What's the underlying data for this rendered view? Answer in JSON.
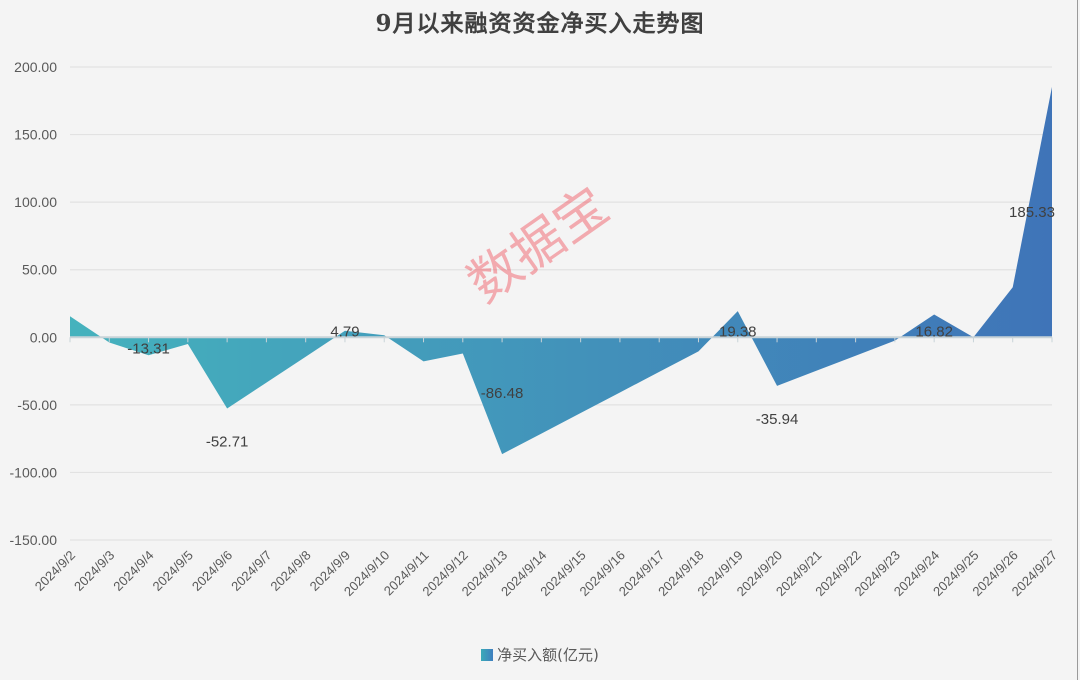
{
  "title": "9月以来融资资金净买入走势图",
  "watermark": "数据宝",
  "legend": {
    "label": "净买入额(亿元)"
  },
  "colors": {
    "start": "#45b2bd",
    "end": "#3f74b8",
    "grid": "#e2e2e2",
    "axis": "#c8d3d8"
  },
  "chart_data": {
    "type": "area",
    "title": "9月以来融资资金净买入走势图",
    "xlabel": "",
    "ylabel": "",
    "ylim": [
      -150,
      200
    ],
    "yticks": [
      "200.00",
      "150.00",
      "100.00",
      "50.00",
      "0.00",
      "-50.00",
      "-100.00",
      "-150.00"
    ],
    "grid": true,
    "legend_position": "bottom",
    "categories": [
      "2024/9/2",
      "2024/9/3",
      "2024/9/4",
      "2024/9/5",
      "2024/9/6",
      "2024/9/7",
      "2024/9/8",
      "2024/9/9",
      "2024/9/10",
      "2024/9/11",
      "2024/9/12",
      "2024/9/13",
      "2024/9/14",
      "2024/9/15",
      "2024/9/16",
      "2024/9/17",
      "2024/9/18",
      "2024/9/19",
      "2024/9/20",
      "2024/9/21",
      "2024/9/22",
      "2024/9/23",
      "2024/9/24",
      "2024/9/25",
      "2024/9/26",
      "2024/9/27"
    ],
    "series": [
      {
        "name": "净买入额(亿元)",
        "values": [
          15.6,
          -3.9,
          -13.31,
          -5.0,
          -52.71,
          null,
          null,
          4.79,
          1.5,
          -17.8,
          -12.0,
          -86.48,
          null,
          null,
          null,
          null,
          -10.4,
          19.38,
          -35.94,
          null,
          null,
          -2.5,
          16.82,
          0.0,
          37.0,
          185.33
        ]
      }
    ],
    "data_labels": [
      {
        "category": "2024/9/4",
        "text": "-13.31"
      },
      {
        "category": "2024/9/6",
        "text": "-52.71"
      },
      {
        "category": "2024/9/9",
        "text": "4.79"
      },
      {
        "category": "2024/9/13",
        "text": "-86.48"
      },
      {
        "category": "2024/9/19",
        "text": "19.38"
      },
      {
        "category": "2024/9/20",
        "text": "-35.94"
      },
      {
        "category": "2024/9/24",
        "text": "16.82"
      },
      {
        "category": "2024/9/27",
        "text": "185.33"
      }
    ]
  }
}
